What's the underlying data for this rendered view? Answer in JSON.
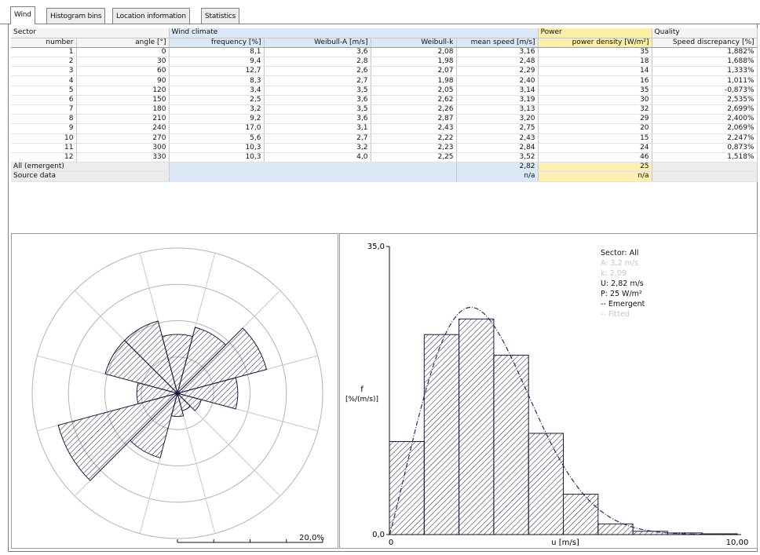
{
  "tabs": [
    {
      "label": "Wind",
      "active": true
    },
    {
      "label": "Histogram bins",
      "active": false
    },
    {
      "label": "Location information",
      "active": false
    },
    {
      "label": "Statistics",
      "active": false
    }
  ],
  "table": {
    "groups": {
      "sector": "Sector",
      "wind_climate": "Wind climate",
      "power": "Power",
      "quality": "Quality"
    },
    "columns": [
      "number",
      "angle [°]",
      "frequency [%]",
      "Weibull-A [m/s]",
      "Weibull-k",
      "mean speed [m/s]",
      "power density [W/m²]",
      "Speed discrepancy [%]"
    ],
    "rows": [
      [
        "1",
        "0",
        "8,1",
        "3,6",
        "2,08",
        "3,16",
        "35",
        "1,882%"
      ],
      [
        "2",
        "30",
        "9,4",
        "2,8",
        "1,98",
        "2,48",
        "18",
        "1,688%"
      ],
      [
        "3",
        "60",
        "12,7",
        "2,6",
        "2,07",
        "2,29",
        "14",
        "1,333%"
      ],
      [
        "4",
        "90",
        "8,3",
        "2,7",
        "1,98",
        "2,40",
        "16",
        "1,011%"
      ],
      [
        "5",
        "120",
        "3,4",
        "3,5",
        "2,05",
        "3,14",
        "35",
        "-0,873%"
      ],
      [
        "6",
        "150",
        "2,5",
        "3,6",
        "2,62",
        "3,19",
        "30",
        "2,535%"
      ],
      [
        "7",
        "180",
        "3,2",
        "3,5",
        "2,26",
        "3,13",
        "32",
        "2,699%"
      ],
      [
        "8",
        "210",
        "9,2",
        "3,6",
        "2,87",
        "3,20",
        "29",
        "2,400%"
      ],
      [
        "9",
        "240",
        "17,0",
        "3,1",
        "2,43",
        "2,75",
        "20",
        "2,069%"
      ],
      [
        "10",
        "270",
        "5,6",
        "2,7",
        "2,22",
        "2,43",
        "15",
        "2,247%"
      ],
      [
        "11",
        "300",
        "10,3",
        "3,2",
        "2,23",
        "2,84",
        "24",
        "0,873%"
      ],
      [
        "12",
        "330",
        "10,3",
        "4,0",
        "2,25",
        "3,52",
        "46",
        "1,518%"
      ]
    ],
    "all_row": {
      "label": "All (emergent)",
      "mean_speed": "2,82",
      "power_density": "25"
    },
    "source_row": {
      "label": "Source data",
      "mean_speed": "n/a",
      "power_density": "n/a"
    }
  },
  "rose": {
    "scale_label": "20,0%",
    "frequencies": [
      8.1,
      9.4,
      12.7,
      8.3,
      3.4,
      2.5,
      3.2,
      9.2,
      17.0,
      5.6,
      10.3,
      10.3
    ],
    "max_percent": 20
  },
  "histogram": {
    "y_top_label": "35,0",
    "y_bottom_label": "0,0",
    "x_left_label": "0",
    "x_right_label": "10,00",
    "x_axis_label": "u [m/s]",
    "y_axis_label_line1": "f",
    "y_axis_label_line2": "[%/(m/s)]",
    "legend": {
      "sector": "Sector: All",
      "a": "A: 3,2 m/s",
      "k": "k: 2,09",
      "u": "U: 2,82 m/s",
      "p": "P: 25 W/m²",
      "emergent": "-- Emergent",
      "fitted": "-- Fitted"
    }
  },
  "chart_data": [
    {
      "type": "bar",
      "subtype": "polar-wind-rose",
      "categories": [
        "0",
        "30",
        "60",
        "90",
        "120",
        "150",
        "180",
        "210",
        "240",
        "270",
        "300",
        "330"
      ],
      "values": [
        8.1,
        9.4,
        12.7,
        8.3,
        3.4,
        2.5,
        3.2,
        9.2,
        17.0,
        5.6,
        10.3,
        10.3
      ],
      "radial_max": 20,
      "scale_label": "20,0%"
    },
    {
      "type": "bar",
      "subtype": "histogram-with-weibull-fit",
      "x_bin_width": 1,
      "x": [
        0.5,
        1.5,
        2.5,
        3.5,
        4.5,
        5.5,
        6.5,
        7.5,
        8.5,
        9.5
      ],
      "values": [
        11.3,
        24.3,
        26.2,
        21.8,
        12.3,
        4.9,
        1.3,
        0.4,
        0.2,
        0.1
      ],
      "xlim": [
        0,
        10
      ],
      "ylim": [
        0,
        35
      ],
      "xlabel": "u [m/s]",
      "ylabel": "f [%/(m/s)]",
      "weibull_fit": {
        "A": 3.2,
        "k": 2.09
      }
    }
  ]
}
